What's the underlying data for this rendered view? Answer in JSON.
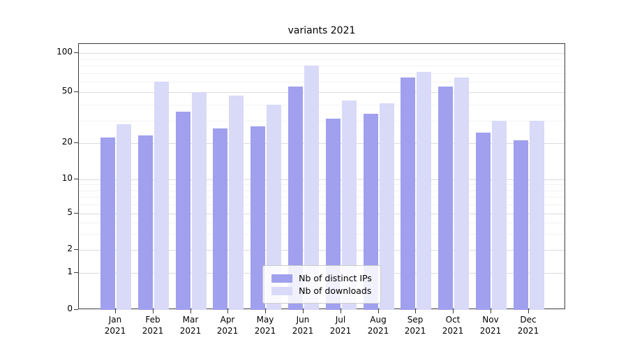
{
  "chart_data": {
    "type": "bar",
    "title": "variants 2021",
    "x_months": [
      "Jan",
      "Feb",
      "Mar",
      "Apr",
      "May",
      "Jun",
      "Jul",
      "Aug",
      "Sep",
      "Oct",
      "Nov",
      "Dec"
    ],
    "x_year": "2021",
    "series": [
      {
        "name": "Nb of distinct IPs",
        "color": "#a0a0ee",
        "values": [
          22,
          23,
          35,
          26,
          27,
          55,
          31,
          34,
          65,
          55,
          24,
          21
        ]
      },
      {
        "name": "Nb of downloads",
        "color": "#d9d9f8",
        "values": [
          28,
          60,
          50,
          47,
          40,
          80,
          43,
          41,
          72,
          65,
          30,
          30
        ]
      }
    ],
    "yticks": [
      0,
      1,
      2,
      5,
      10,
      20,
      50,
      100
    ],
    "yscale": "symlog",
    "ylim": [
      0,
      115
    ],
    "grid": true,
    "legend_position": "lower center",
    "xlabel": "",
    "ylabel": ""
  },
  "colors": {
    "grid_major": "#dcdcdc",
    "grid_minor": "#f2f2f2",
    "axis": "#3a3a3a",
    "background": "#ffffff"
  }
}
